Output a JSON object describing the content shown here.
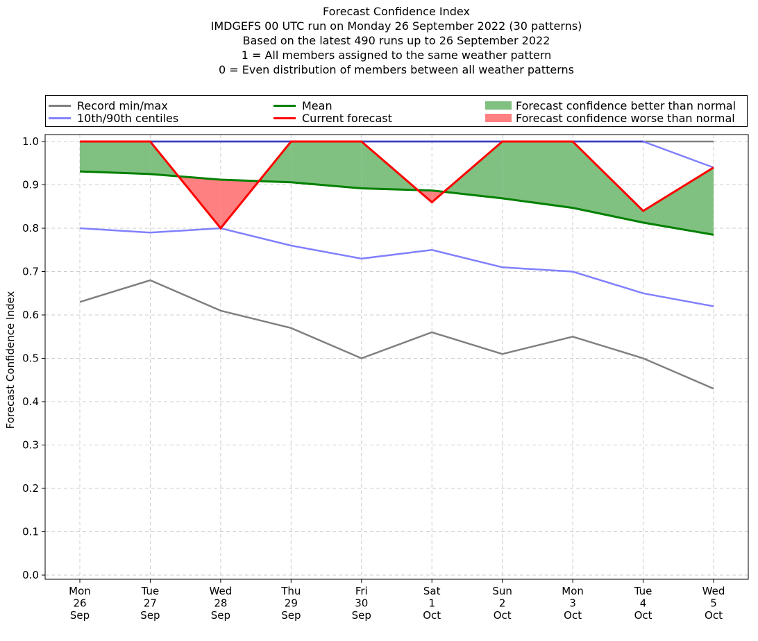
{
  "titles": [
    "Forecast Confidence Index",
    "IMDGEFS 00 UTC run on Monday 26 September 2022 (30 patterns)",
    "Based on the latest 490 runs up to 26 September 2022",
    "1 = All members assigned to the same weather pattern",
    "0 = Even distribution of members between all weather patterns"
  ],
  "legend": {
    "record": "Record min/max",
    "centiles": "10th/90th centiles",
    "mean": "Mean",
    "current": "Current forecast",
    "better": "Forecast confidence better than normal",
    "worse": "Forecast confidence worse than normal"
  },
  "colors": {
    "record": "#808080",
    "centiles": "#8080ff",
    "mean": "#008000",
    "current": "#ff0000",
    "better": "#80c080",
    "worse": "#ff8080",
    "top_overlap": "#4040bf"
  },
  "chart_data": {
    "type": "line",
    "ylabel": "Forecast Confidence Index",
    "ylim": [
      0.0,
      1.0
    ],
    "yticks": [
      "0.0",
      "0.1",
      "0.2",
      "0.3",
      "0.4",
      "0.5",
      "0.6",
      "0.7",
      "0.8",
      "0.9",
      "1.0"
    ],
    "grid": true,
    "legend_position": "top",
    "categories": [
      [
        "Mon",
        "26",
        "Sep"
      ],
      [
        "Tue",
        "27",
        "Sep"
      ],
      [
        "Wed",
        "28",
        "Sep"
      ],
      [
        "Thu",
        "29",
        "Sep"
      ],
      [
        "Fri",
        "30",
        "Sep"
      ],
      [
        "Sat",
        "1",
        "Oct"
      ],
      [
        "Sun",
        "2",
        "Oct"
      ],
      [
        "Mon",
        "3",
        "Oct"
      ],
      [
        "Tue",
        "4",
        "Oct"
      ],
      [
        "Wed",
        "5",
        "Oct"
      ]
    ],
    "series": [
      {
        "name": "Record min",
        "key": "record",
        "values": [
          0.63,
          0.68,
          0.61,
          0.57,
          0.5,
          0.56,
          0.51,
          0.55,
          0.5,
          0.43
        ]
      },
      {
        "name": "Record max",
        "key": "record",
        "values": [
          1.0,
          1.0,
          1.0,
          1.0,
          1.0,
          1.0,
          1.0,
          1.0,
          1.0,
          1.0
        ]
      },
      {
        "name": "10th centile",
        "key": "centiles",
        "values": [
          0.8,
          0.79,
          0.8,
          0.76,
          0.73,
          0.75,
          0.71,
          0.7,
          0.65,
          0.62
        ]
      },
      {
        "name": "90th centile",
        "key": "centiles",
        "values": [
          1.0,
          1.0,
          1.0,
          1.0,
          1.0,
          1.0,
          1.0,
          1.0,
          1.0,
          0.94
        ]
      },
      {
        "name": "Mean",
        "key": "mean",
        "values": [
          0.931,
          0.925,
          0.912,
          0.906,
          0.892,
          0.887,
          0.869,
          0.847,
          0.813,
          0.785
        ]
      },
      {
        "name": "Current forecast",
        "key": "current",
        "values": [
          1.0,
          1.0,
          0.8,
          1.0,
          1.0,
          0.86,
          1.0,
          1.0,
          0.84,
          0.94
        ]
      }
    ]
  }
}
